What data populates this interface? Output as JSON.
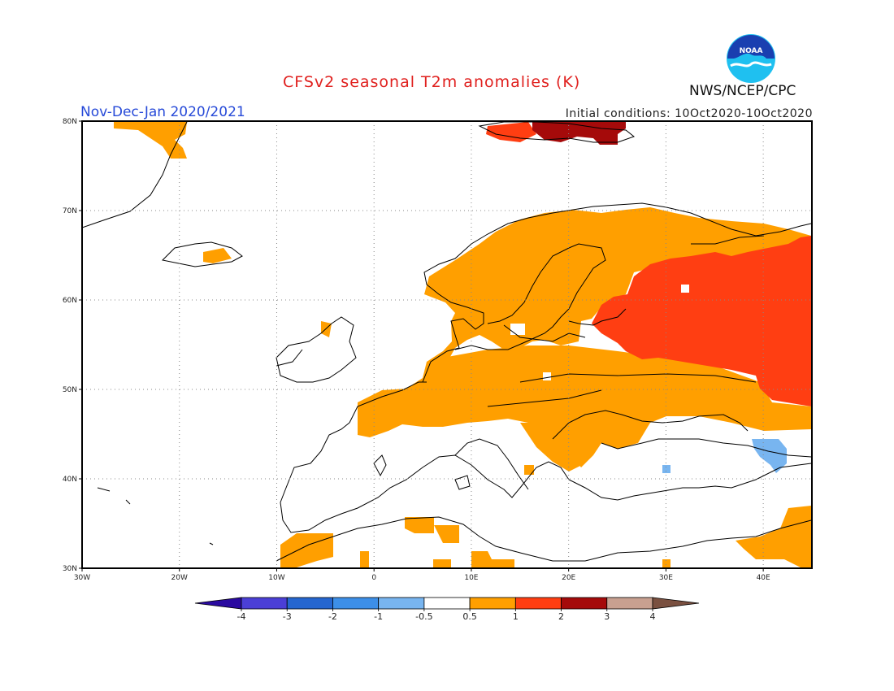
{
  "header": {
    "title": "CFSv2 seasonal T2m anomalies (K)",
    "season": "Nov-Dec-Jan 2020/2021",
    "initial_conditions": "Initial conditions: 10Oct2020-10Oct2020",
    "agency": "NWS/NCEP/CPC",
    "logo_text": "NOAA"
  },
  "map": {
    "lon_range": [
      -30,
      45
    ],
    "lat_range": [
      30,
      80
    ],
    "lon_ticks": [
      {
        "value": -30,
        "label": "30W"
      },
      {
        "value": -20,
        "label": "20W"
      },
      {
        "value": -10,
        "label": "10W"
      },
      {
        "value": 0,
        "label": "0"
      },
      {
        "value": 10,
        "label": "10E"
      },
      {
        "value": 20,
        "label": "20E"
      },
      {
        "value": 30,
        "label": "30E"
      },
      {
        "value": 40,
        "label": "40E"
      }
    ],
    "lat_ticks": [
      {
        "value": 30,
        "label": "30N"
      },
      {
        "value": 40,
        "label": "40N"
      },
      {
        "value": 50,
        "label": "50N"
      },
      {
        "value": 60,
        "label": "60N"
      },
      {
        "value": 70,
        "label": "70N"
      },
      {
        "value": 80,
        "label": "80N"
      }
    ],
    "grid": "dotted",
    "colors": {
      "warm_05_1": "#ff9f00",
      "warm_1_2": "#ff3e12",
      "warm_2_3": "#a50a0a",
      "cool_m1_m05": "#78b5f0",
      "coast": "#000000"
    }
  },
  "colorbar": {
    "labels": [
      "-4",
      "-3",
      "-2",
      "-1",
      "-0.5",
      "0.5",
      "1",
      "2",
      "3",
      "4"
    ],
    "colors": [
      "#2a0aa0",
      "#4b3fd6",
      "#2566d0",
      "#3d8fe8",
      "#78b5f0",
      "#ffffff",
      "#ff9f00",
      "#ff3e12",
      "#a50a0a",
      "#c8a090",
      "#7a5040"
    ]
  }
}
